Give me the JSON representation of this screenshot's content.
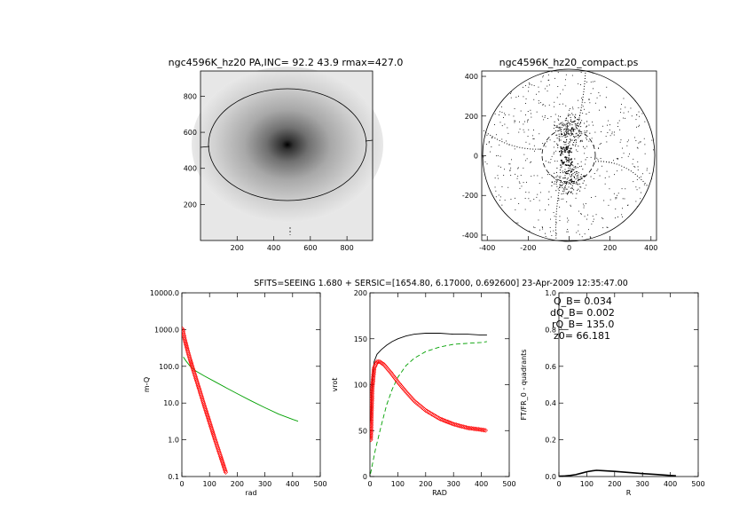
{
  "figure": {
    "header": "SFITS=SEEING 1.680 + SERSIC=[1654.80, 6.17000, 0.692600]  23-Apr-2009 12:35:47.00"
  },
  "colors": {
    "axis": "#000000",
    "image_bg": "#f0f0f0",
    "red": "#ff0000",
    "green": "#00a000",
    "black": "#000000"
  },
  "chart_data": [
    {
      "id": "image",
      "type": "heatmap",
      "title": "ngc4596K_hz20 PA,INC= 92.2 43.9 rmax=427.0",
      "xticks": [
        "200",
        "400",
        "600",
        "800"
      ],
      "yticks": [
        "200",
        "400",
        "600",
        "800"
      ],
      "xlim": [
        0,
        940
      ],
      "ylim": [
        0,
        940
      ],
      "center": [
        490,
        530
      ],
      "ellipse": {
        "a": 435,
        "b": 310
      }
    },
    {
      "id": "compact",
      "type": "scatter",
      "title": "ngc4596K_hz20_compact.ps",
      "xticks": [
        "-400",
        "-200",
        "0",
        "200",
        "400"
      ],
      "yticks": [
        "-400",
        "-200",
        "0",
        "200",
        "400"
      ],
      "xlim": [
        -427,
        427
      ],
      "ylim": [
        -427,
        427
      ],
      "circle_outer_r": 427,
      "circle_inner_r": 135
    },
    {
      "id": "massprofile",
      "type": "line",
      "xlabel": "rad",
      "ylabel": "m-Q",
      "xticks": [
        "0",
        "100",
        "200",
        "300",
        "400",
        "500"
      ],
      "yticks": [
        "0.1",
        "1.0",
        "10.0",
        "100.0",
        "1000.0",
        "10000.0"
      ],
      "xlim": [
        0,
        500
      ],
      "ylim": [
        0.1,
        10000
      ],
      "yscale": "log",
      "series": [
        {
          "style": "green-solid",
          "x": [
            5,
            15,
            30,
            50,
            80,
            120,
            160,
            200,
            250,
            300,
            350,
            400,
            420
          ],
          "y": [
            180,
            140,
            100,
            75,
            55,
            38,
            26,
            18,
            11.5,
            7.5,
            5,
            3.6,
            3.2
          ]
        },
        {
          "style": "red-symbols",
          "x": [
            2,
            10,
            20,
            30,
            40,
            60,
            80,
            100,
            120,
            140,
            160
          ],
          "y": [
            1050,
            550,
            280,
            150,
            85,
            28,
            9,
            3,
            1,
            0.35,
            0.12
          ]
        }
      ]
    },
    {
      "id": "rotcurve",
      "type": "line",
      "xlabel": "RAD",
      "ylabel": "vrot",
      "xticks": [
        "0",
        "100",
        "200",
        "300",
        "400",
        "500"
      ],
      "yticks": [
        "0",
        "50",
        "100",
        "150",
        "200"
      ],
      "xlim": [
        0,
        500
      ],
      "ylim": [
        0,
        200
      ],
      "series": [
        {
          "style": "black-solid",
          "x": [
            3,
            8,
            15,
            25,
            40,
            60,
            80,
            100,
            130,
            160,
            200,
            250,
            300,
            350,
            400,
            420
          ],
          "y": [
            60,
            105,
            125,
            133,
            138,
            143,
            147,
            150,
            153,
            155,
            156,
            156,
            155,
            155,
            154,
            154
          ]
        },
        {
          "style": "green-dashed",
          "x": [
            2,
            20,
            40,
            60,
            80,
            100,
            130,
            160,
            200,
            250,
            300,
            350,
            400,
            420
          ],
          "y": [
            3,
            30,
            55,
            78,
            95,
            108,
            121,
            129,
            136,
            141,
            144,
            145,
            146,
            147
          ]
        },
        {
          "style": "red-symbols",
          "x": [
            3,
            8,
            15,
            25,
            35,
            50,
            75,
            100,
            130,
            160,
            200,
            250,
            300,
            350,
            400,
            420
          ],
          "y": [
            40,
            95,
            118,
            125,
            125,
            122,
            113,
            103,
            92,
            82,
            72,
            63,
            57,
            53,
            51,
            50
          ]
        }
      ]
    },
    {
      "id": "qb",
      "type": "line",
      "xlabel": "R",
      "ylabel": "FT/FR_0 - quadrants",
      "xticks": [
        "0",
        "100",
        "200",
        "300",
        "400",
        "500"
      ],
      "yticks": [
        "0.0",
        "0.2",
        "0.4",
        "0.6",
        "0.8",
        "1.0"
      ],
      "xlim": [
        0,
        500
      ],
      "ylim": [
        0,
        1
      ],
      "annotations": [
        "Q_B=  0.034",
        "dQ_B=  0.002",
        "rQ_B=  135.0",
        "z0=  66.181"
      ],
      "series": [
        {
          "style": "black-solid",
          "x": [
            2,
            20,
            40,
            60,
            80,
            100,
            120,
            135,
            160,
            200,
            250,
            300,
            350,
            400,
            420
          ],
          "y": [
            0.002,
            0.003,
            0.006,
            0.01,
            0.018,
            0.026,
            0.031,
            0.034,
            0.032,
            0.028,
            0.022,
            0.016,
            0.011,
            0.006,
            0.004
          ]
        }
      ]
    }
  ]
}
